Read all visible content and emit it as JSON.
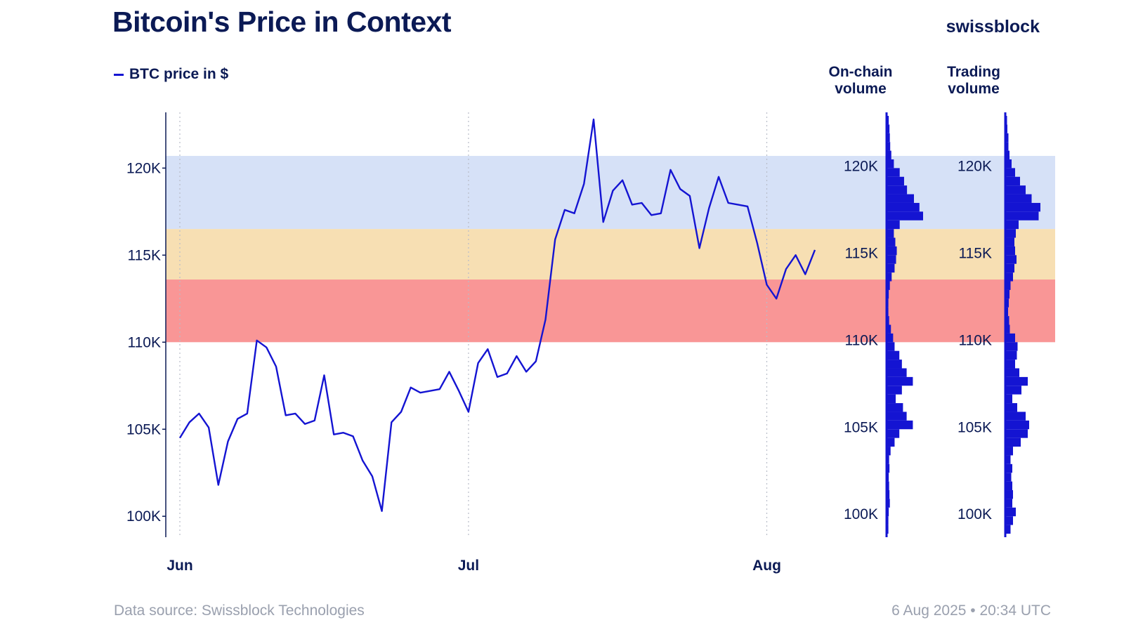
{
  "header": {
    "title": "Bitcoin's Price in Context",
    "brand": "swissblock"
  },
  "footer": {
    "source": "Data source: Swissblock Technologies",
    "timestamp": "6 Aug 2025 • 20:34 UTC"
  },
  "colors": {
    "line": "#1414d2",
    "band_blue": "#d6e1f7",
    "band_orange": "#f7dfb3",
    "band_red": "#f99696",
    "volume_bar": "#1414d2",
    "text": "#0b1a55"
  },
  "chart_data": {
    "type": "line",
    "title": "Bitcoin's Price in Context",
    "legend": "top-left",
    "series": [
      {
        "name": "BTC price in $",
        "points": [
          [
            "2025-06-01",
            104500
          ],
          [
            "2025-06-02",
            105400
          ],
          [
            "2025-06-03",
            105900
          ],
          [
            "2025-06-04",
            105100
          ],
          [
            "2025-06-05",
            101800
          ],
          [
            "2025-06-06",
            104300
          ],
          [
            "2025-06-07",
            105600
          ],
          [
            "2025-06-08",
            105900
          ],
          [
            "2025-06-09",
            110100
          ],
          [
            "2025-06-10",
            109700
          ],
          [
            "2025-06-11",
            108600
          ],
          [
            "2025-06-12",
            105800
          ],
          [
            "2025-06-13",
            105900
          ],
          [
            "2025-06-14",
            105300
          ],
          [
            "2025-06-15",
            105500
          ],
          [
            "2025-06-16",
            108100
          ],
          [
            "2025-06-17",
            104700
          ],
          [
            "2025-06-18",
            104800
          ],
          [
            "2025-06-19",
            104600
          ],
          [
            "2025-06-20",
            103200
          ],
          [
            "2025-06-21",
            102300
          ],
          [
            "2025-06-22",
            100300
          ],
          [
            "2025-06-23",
            105400
          ],
          [
            "2025-06-24",
            106000
          ],
          [
            "2025-06-25",
            107400
          ],
          [
            "2025-06-26",
            107100
          ],
          [
            "2025-06-27",
            107200
          ],
          [
            "2025-06-28",
            107300
          ],
          [
            "2025-06-29",
            108300
          ],
          [
            "2025-06-30",
            107200
          ],
          [
            "2025-07-01",
            106000
          ],
          [
            "2025-07-02",
            108800
          ],
          [
            "2025-07-03",
            109600
          ],
          [
            "2025-07-04",
            108000
          ],
          [
            "2025-07-05",
            108200
          ],
          [
            "2025-07-06",
            109200
          ],
          [
            "2025-07-07",
            108300
          ],
          [
            "2025-07-08",
            108900
          ],
          [
            "2025-07-09",
            111300
          ],
          [
            "2025-07-10",
            115900
          ],
          [
            "2025-07-11",
            117600
          ],
          [
            "2025-07-12",
            117400
          ],
          [
            "2025-07-13",
            119100
          ],
          [
            "2025-07-14",
            122800
          ],
          [
            "2025-07-15",
            116900
          ],
          [
            "2025-07-16",
            118700
          ],
          [
            "2025-07-17",
            119300
          ],
          [
            "2025-07-18",
            117900
          ],
          [
            "2025-07-19",
            118000
          ],
          [
            "2025-07-20",
            117300
          ],
          [
            "2025-07-21",
            117400
          ],
          [
            "2025-07-22",
            119900
          ],
          [
            "2025-07-23",
            118800
          ],
          [
            "2025-07-24",
            118400
          ],
          [
            "2025-07-25",
            115400
          ],
          [
            "2025-07-26",
            117700
          ],
          [
            "2025-07-27",
            119500
          ],
          [
            "2025-07-28",
            118000
          ],
          [
            "2025-07-29",
            117900
          ],
          [
            "2025-07-30",
            117800
          ],
          [
            "2025-07-31",
            115700
          ],
          [
            "2025-08-01",
            113300
          ],
          [
            "2025-08-02",
            112500
          ],
          [
            "2025-08-03",
            114200
          ],
          [
            "2025-08-04",
            115000
          ],
          [
            "2025-08-05",
            113900
          ],
          [
            "2025-08-06",
            115300
          ]
        ]
      }
    ],
    "x_ticks": [
      {
        "date": "2025-06-01",
        "label": "Jun"
      },
      {
        "date": "2025-07-01",
        "label": "Jul"
      },
      {
        "date": "2025-08-01",
        "label": "Aug"
      }
    ],
    "y_ticks": [
      {
        "value": 100000,
        "label": "100K"
      },
      {
        "value": 105000,
        "label": "105K"
      },
      {
        "value": 110000,
        "label": "110K"
      },
      {
        "value": 115000,
        "label": "115K"
      },
      {
        "value": 120000,
        "label": "120K"
      }
    ],
    "ylim": [
      99000,
      123000
    ],
    "grid": "vertical dotted at month starts",
    "bands": [
      {
        "from": 116500,
        "to": 120700,
        "color": "#d6e1f7"
      },
      {
        "from": 113600,
        "to": 116500,
        "color": "#f7dfb3"
      },
      {
        "from": 110000,
        "to": 113600,
        "color": "#f99696"
      }
    ],
    "volume_profiles": [
      {
        "title": "On-chain volume",
        "bins": [
          [
            99000,
            0.05
          ],
          [
            99500,
            0.05
          ],
          [
            100000,
            0.06
          ],
          [
            100500,
            0.09
          ],
          [
            101000,
            0.08
          ],
          [
            101500,
            0.07
          ],
          [
            102000,
            0.06
          ],
          [
            102500,
            0.08
          ],
          [
            103000,
            0.07
          ],
          [
            103500,
            0.11
          ],
          [
            104000,
            0.22
          ],
          [
            104500,
            0.35
          ],
          [
            105000,
            0.72
          ],
          [
            105500,
            0.55
          ],
          [
            106000,
            0.45
          ],
          [
            106500,
            0.25
          ],
          [
            107000,
            0.42
          ],
          [
            107500,
            0.72
          ],
          [
            108000,
            0.55
          ],
          [
            108500,
            0.42
          ],
          [
            109000,
            0.35
          ],
          [
            109500,
            0.22
          ],
          [
            110000,
            0.18
          ],
          [
            110500,
            0.12
          ],
          [
            111000,
            0.07
          ],
          [
            111500,
            0.05
          ],
          [
            112000,
            0.05
          ],
          [
            112500,
            0.06
          ],
          [
            113000,
            0.09
          ],
          [
            113500,
            0.14
          ],
          [
            114000,
            0.22
          ],
          [
            114500,
            0.26
          ],
          [
            115000,
            0.28
          ],
          [
            115500,
            0.24
          ],
          [
            116000,
            0.2
          ],
          [
            116500,
            0.36
          ],
          [
            117000,
            1.0
          ],
          [
            117500,
            0.9
          ],
          [
            118000,
            0.75
          ],
          [
            118500,
            0.56
          ],
          [
            119000,
            0.48
          ],
          [
            119500,
            0.36
          ],
          [
            120000,
            0.2
          ],
          [
            120500,
            0.13
          ],
          [
            121000,
            0.1
          ],
          [
            121500,
            0.09
          ],
          [
            122000,
            0.08
          ],
          [
            122500,
            0.06
          ]
        ]
      },
      {
        "title": "Trading volume",
        "bins": [
          [
            99000,
            0.15
          ],
          [
            99500,
            0.22
          ],
          [
            100000,
            0.3
          ],
          [
            100500,
            0.2
          ],
          [
            101000,
            0.22
          ],
          [
            101500,
            0.2
          ],
          [
            102000,
            0.17
          ],
          [
            102500,
            0.2
          ],
          [
            103000,
            0.15
          ],
          [
            103500,
            0.22
          ],
          [
            104000,
            0.44
          ],
          [
            104500,
            0.64
          ],
          [
            105000,
            0.68
          ],
          [
            105500,
            0.58
          ],
          [
            106000,
            0.34
          ],
          [
            106500,
            0.2
          ],
          [
            107000,
            0.46
          ],
          [
            107500,
            0.64
          ],
          [
            108000,
            0.4
          ],
          [
            108500,
            0.28
          ],
          [
            109000,
            0.33
          ],
          [
            109500,
            0.35
          ],
          [
            110000,
            0.28
          ],
          [
            110500,
            0.13
          ],
          [
            111000,
            0.11
          ],
          [
            111500,
            0.08
          ],
          [
            112000,
            0.1
          ],
          [
            112500,
            0.12
          ],
          [
            113000,
            0.15
          ],
          [
            113500,
            0.22
          ],
          [
            114000,
            0.26
          ],
          [
            114500,
            0.32
          ],
          [
            115000,
            0.28
          ],
          [
            115500,
            0.26
          ],
          [
            116000,
            0.3
          ],
          [
            116500,
            0.38
          ],
          [
            117000,
            0.95
          ],
          [
            117500,
            1.0
          ],
          [
            118000,
            0.75
          ],
          [
            118500,
            0.58
          ],
          [
            119000,
            0.42
          ],
          [
            119500,
            0.28
          ],
          [
            120000,
            0.18
          ],
          [
            120500,
            0.12
          ],
          [
            121000,
            0.09
          ],
          [
            121500,
            0.09
          ],
          [
            122000,
            0.06
          ],
          [
            122500,
            0.05
          ]
        ]
      }
    ]
  }
}
